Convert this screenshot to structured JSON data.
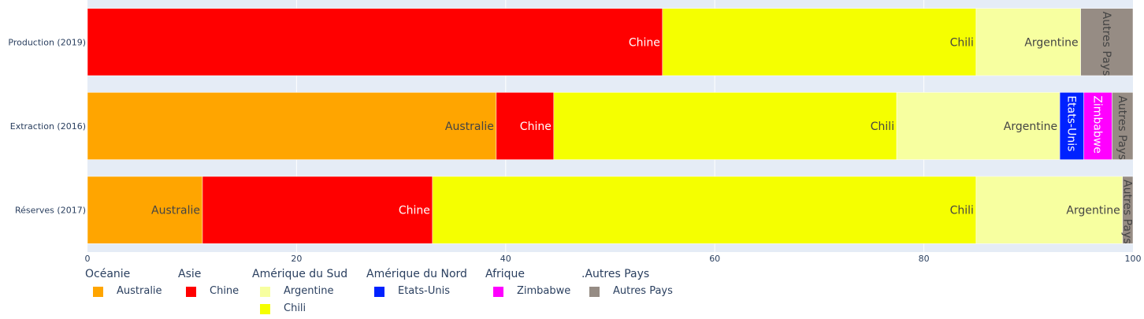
{
  "chart_data": {
    "type": "bar",
    "orientation": "horizontal",
    "barmode": "stack",
    "categories": [
      "Production (2019)",
      "Extraction (2016)",
      "Réserves (2017)"
    ],
    "xlim": [
      0,
      100
    ],
    "xticks": [
      0,
      20,
      40,
      60,
      80,
      100
    ],
    "grid": true,
    "legend_position": "bottom",
    "series": [
      {
        "name": "Australie",
        "group": "Océanie",
        "color": "#FFA500",
        "label_color": "#444444",
        "values": [
          0,
          39.1,
          11.0
        ]
      },
      {
        "name": "Chine",
        "group": "Asie",
        "color": "#FF0000",
        "label_color": "#ffffff",
        "values": [
          55.0,
          5.5,
          22.0
        ]
      },
      {
        "name": "Chili",
        "group": "Amérique du Sud",
        "color": "#F5FF00",
        "label_color": "#444444",
        "values": [
          30.0,
          32.8,
          52.0
        ]
      },
      {
        "name": "Argentine",
        "group": "Amérique du Sud",
        "color": "#F7FFA0",
        "label_color": "#444444",
        "values": [
          10.0,
          15.6,
          14.0
        ]
      },
      {
        "name": "Etats-Unis",
        "group": "Amérique du Nord",
        "color": "#0022FF",
        "label_color": "#ffffff",
        "values": [
          0,
          2.3,
          0
        ]
      },
      {
        "name": "Zimbabwe",
        "group": "Afrique",
        "color": "#FF00FF",
        "label_color": "#ffffff",
        "values": [
          0,
          2.7,
          0
        ]
      },
      {
        "name": "Autres Pays",
        "group": ".Autres Pays",
        "color": "#968C84",
        "label_color": "#444444",
        "values": [
          5.0,
          2.0,
          1.0
        ]
      }
    ]
  },
  "legend": {
    "groups": [
      {
        "title": "Océanie",
        "items": [
          {
            "name": "Australie",
            "color": "#FFA500"
          }
        ]
      },
      {
        "title": "Asie",
        "items": [
          {
            "name": "Chine",
            "color": "#FF0000"
          }
        ]
      },
      {
        "title": "Amérique du Sud",
        "items": [
          {
            "name": "Argentine",
            "color": "#F7FFA0"
          },
          {
            "name": "Chili",
            "color": "#F5FF00"
          }
        ]
      },
      {
        "title": "Amérique du Nord",
        "items": [
          {
            "name": "Etats-Unis",
            "color": "#0022FF"
          }
        ]
      },
      {
        "title": "Afrique",
        "items": [
          {
            "name": "Zimbabwe",
            "color": "#FF00FF"
          }
        ]
      },
      {
        "title": ".Autres Pays",
        "items": [
          {
            "name": "Autres Pays",
            "color": "#968C84"
          }
        ]
      }
    ]
  }
}
